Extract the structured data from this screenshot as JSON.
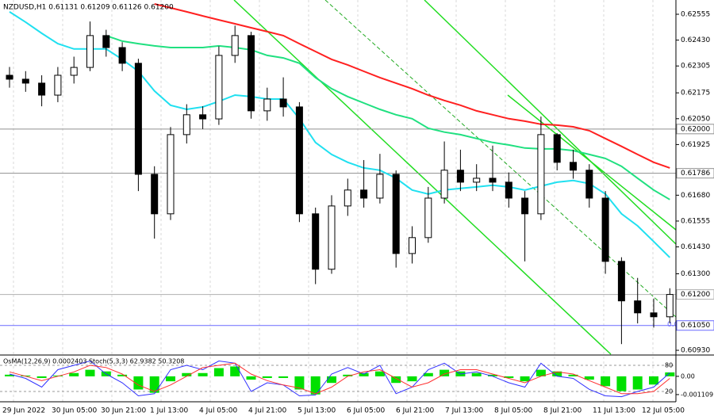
{
  "chart_data": {
    "type": "candlestick",
    "title": "NZDUSD,H1  0.61131 0.61209 0.61126 0.61200",
    "open": [
      0.6226,
      0.62241,
      0.62222,
      0.62164,
      0.6226,
      0.62298,
      0.62452,
      0.62394,
      0.62318,
      0.61781,
      0.6159,
      0.61973,
      0.62069,
      0.62049,
      0.62356,
      0.62452,
      0.62088,
      0.62145,
      0.62107,
      0.6159,
      0.61322,
      0.61628,
      0.61705,
      0.61666,
      0.61781,
      0.61398,
      0.61475,
      0.61666,
      0.61801,
      0.61743,
      0.61762,
      0.61743,
      0.61666,
      0.6159,
      0.61973,
      0.61839,
      0.61801,
      0.61666,
      0.6136,
      0.61169,
      0.61111,
      0.61092
    ],
    "high": [
      0.623,
      0.6228,
      0.6226,
      0.623,
      0.6235,
      0.6252,
      0.6248,
      0.6242,
      0.6234,
      0.6182,
      0.6201,
      0.6212,
      0.6211,
      0.624,
      0.625,
      0.6247,
      0.622,
      0.6225,
      0.6213,
      0.6162,
      0.6168,
      0.6176,
      0.6185,
      0.6188,
      0.618,
      0.6153,
      0.6172,
      0.6194,
      0.619,
      0.6183,
      0.6192,
      0.6179,
      0.617,
      0.6206,
      0.6198,
      0.619,
      0.6183,
      0.617,
      0.6138,
      0.6128,
      0.6118,
      0.6123
    ],
    "low": [
      0.622,
      0.6218,
      0.6211,
      0.6213,
      0.6222,
      0.6228,
      0.6235,
      0.6228,
      0.617,
      0.6147,
      0.6156,
      0.6193,
      0.62,
      0.6202,
      0.6232,
      0.6205,
      0.6204,
      0.6206,
      0.6155,
      0.6125,
      0.613,
      0.6158,
      0.6162,
      0.6164,
      0.6133,
      0.6135,
      0.6145,
      0.6164,
      0.617,
      0.617,
      0.617,
      0.6162,
      0.6136,
      0.6156,
      0.618,
      0.6176,
      0.6162,
      0.613,
      0.6096,
      0.6106,
      0.6104,
      0.6106
    ],
    "close": [
      0.62241,
      0.62222,
      0.62164,
      0.6226,
      0.62298,
      0.62452,
      0.62394,
      0.62318,
      0.61781,
      0.6159,
      0.61973,
      0.62069,
      0.62049,
      0.62356,
      0.62452,
      0.62088,
      0.62145,
      0.62107,
      0.6159,
      0.61322,
      0.61628,
      0.61705,
      0.61666,
      0.61781,
      0.61398,
      0.61475,
      0.61666,
      0.61801,
      0.61743,
      0.61762,
      0.61743,
      0.61666,
      0.6159,
      0.61973,
      0.61839,
      0.61801,
      0.61666,
      0.6136,
      0.61169,
      0.61111,
      0.61092,
      0.612
    ],
    "moving_averages": [
      {
        "color": "#ff2020",
        "values": [
          null,
          null,
          null,
          null,
          null,
          null,
          null,
          null,
          null,
          0.62605,
          0.62586,
          0.62567,
          0.62547,
          0.62528,
          0.62509,
          0.6249,
          0.62471,
          0.62452,
          0.62413,
          0.62375,
          0.62337,
          0.6231,
          0.62279,
          0.62249,
          0.62222,
          0.62195,
          0.62164,
          0.62138,
          0.62115,
          0.62088,
          0.62069,
          0.6205,
          0.62038,
          0.62023,
          0.62019,
          0.62011,
          0.61992,
          0.61954,
          0.61916,
          0.61877,
          0.61839,
          0.61812
        ]
      },
      {
        "color": "#20e080",
        "values": [
          null,
          null,
          null,
          null,
          null,
          null,
          0.62452,
          0.62425,
          0.62413,
          0.62402,
          0.62394,
          0.62394,
          0.62394,
          0.62402,
          0.62394,
          0.62383,
          0.62356,
          0.62344,
          0.62318,
          0.62249,
          0.62195,
          0.62157,
          0.62126,
          0.62095,
          0.62069,
          0.6205,
          0.62004,
          0.61985,
          0.61973,
          0.61954,
          0.61935,
          0.61923,
          0.61908,
          0.61904,
          0.61904,
          0.61896,
          0.61877,
          0.61858,
          0.6182,
          0.61762,
          0.61705,
          0.61659
        ]
      },
      {
        "color": "#20e0f0",
        "values": [
          0.62567,
          0.62517,
          0.62463,
          0.62413,
          0.62387,
          0.62387,
          0.62387,
          0.62337,
          0.62279,
          0.62184,
          0.62115,
          0.62095,
          0.62107,
          0.62134,
          0.62164,
          0.62157,
          0.62145,
          0.62145,
          0.6205,
          0.61935,
          0.61877,
          0.61839,
          0.61812,
          0.61801,
          0.61762,
          0.61705,
          0.61686,
          0.61705,
          0.61713,
          0.6172,
          0.61728,
          0.6172,
          0.61705,
          0.61724,
          0.61743,
          0.61751,
          0.61736,
          0.61686,
          0.6159,
          0.61532,
          0.61456,
          0.61379
        ]
      }
    ],
    "ylim": [
      0.60911,
      0.62624
    ],
    "yticks": [
      0.62555,
      {
        "value": 0.6243,
        "label": "0.62430"
      },
      0.62305,
      0.62175,
      {
        "value": 0.6205,
        "label": "0.62050"
      },
      0.61925,
      {
        "value": 0.6168,
        "label": "0.61680"
      },
      0.61555,
      {
        "value": 0.6143,
        "label": "0.61430"
      },
      {
        "value": 0.613,
        "label": "0.61300"
      },
      {
        "value": 0.6093,
        "label": "0.60930"
      }
    ],
    "levels": [
      {
        "value": 0.62,
        "label": "0.62000",
        "color": "#909090"
      },
      {
        "value": 0.61786,
        "label": "0.61786",
        "color": "#909090"
      },
      {
        "value": 0.612,
        "label": "0.61200",
        "color": "#b0b0b0"
      },
      {
        "value": 0.6105,
        "label": "0.61050",
        "color": "#6a6aff"
      }
    ],
    "fib_label": "0.0",
    "time_labels": [
      "29 Jun 2022",
      "30 Jun 05:00",
      "30 Jun 21:00",
      "1 Jul 13:00",
      "4 Jul 05:00",
      "4 Jul 21:00",
      "5 Jul 13:00",
      "6 Jul 05:00",
      "6 Jul 21:00",
      "7 Jul 13:00",
      "8 Jul 05:00",
      "8 Jul 21:00",
      "11 Jul 13:00",
      "12 Jul 05:00"
    ],
    "indicator": {
      "title": "OsMA(12,26,9) 0.0002403 Stoch(5,3,3) 62.9382 50.3208",
      "osma": {
        "color": "#00e000",
        "values": [
          0.0001,
          5e-05,
          -0.0001,
          5e-05,
          0.0002,
          0.0004,
          0.0003,
          0.0001,
          -0.0008,
          -0.001,
          -0.0003,
          0.0002,
          0.0002,
          0.0005,
          0.0006,
          -0.0002,
          -0.0001,
          -0.0001,
          -0.0008,
          -0.0011,
          -0.0004,
          0.0001,
          0.0002,
          0.0003,
          -0.0004,
          -0.0003,
          0.0002,
          0.0004,
          0.0003,
          0.0002,
          0.0001,
          -0.0001,
          -0.0003,
          0.0004,
          0.0003,
          0.0001,
          -0.0002,
          -0.0006,
          -0.0009,
          -0.0008,
          -0.0005,
          0.00024
        ]
      },
      "ylim": [
        -0.00145,
        0.0012
      ],
      "yticks": [
        {
          "value": 0,
          "label": "0.00"
        },
        -0.001109
      ],
      "stoch_main": {
        "color": "#3030ff",
        "values": [
          60,
          50,
          30,
          70,
          80,
          90,
          60,
          40,
          10,
          15,
          70,
          80,
          70,
          90,
          85,
          20,
          40,
          35,
          10,
          12,
          60,
          75,
          60,
          80,
          15,
          30,
          70,
          85,
          60,
          65,
          55,
          40,
          30,
          85,
          55,
          50,
          25,
          10,
          8,
          20,
          30,
          63
        ]
      },
      "stoch_signal": {
        "color": "#ff3030",
        "values": [
          65,
          55,
          45,
          55,
          65,
          80,
          75,
          60,
          35,
          20,
          35,
          55,
          75,
          80,
          85,
          60,
          45,
          35,
          28,
          15,
          30,
          55,
          65,
          70,
          50,
          30,
          40,
          60,
          70,
          70,
          60,
          50,
          40,
          55,
          65,
          60,
          45,
          30,
          15,
          15,
          20,
          50
        ]
      },
      "y2lim": [
        0,
        100
      ],
      "y2ticks": [
        20,
        80
      ]
    }
  }
}
